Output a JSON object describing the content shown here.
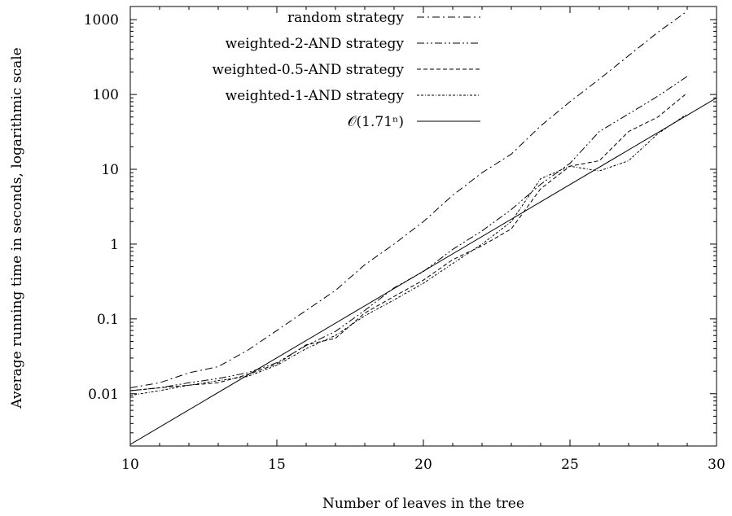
{
  "chart_data": {
    "type": "line",
    "title": "",
    "xlabel": "Number of leaves in the tree",
    "ylabel": "Average running time in seconds, logarithmic scale",
    "xlim": [
      10,
      30
    ],
    "ylim": [
      0.002,
      1500
    ],
    "yscale": "log",
    "grid": false,
    "legend_position": "top-right",
    "x_ticks": [
      10,
      15,
      20,
      25,
      30
    ],
    "x_tick_labels": [
      "10",
      "15",
      "20",
      "25",
      "30"
    ],
    "y_ticks": [
      0.01,
      0.1,
      1,
      10,
      100,
      1000
    ],
    "y_tick_labels": [
      "0.01",
      "0.1",
      "1",
      "10",
      "100",
      "1000"
    ],
    "series": [
      {
        "name": "random strategy",
        "dash": "dashdot",
        "x": [
          10,
          11,
          12,
          13,
          14,
          15,
          16,
          17,
          18,
          19,
          20,
          21,
          22,
          23,
          24,
          25,
          26,
          27,
          28,
          29
        ],
        "y": [
          0.012,
          0.014,
          0.019,
          0.023,
          0.038,
          0.07,
          0.13,
          0.24,
          0.53,
          1.0,
          2.0,
          4.5,
          9.0,
          16,
          38,
          80,
          160,
          330,
          680,
          1300
        ]
      },
      {
        "name": "weighted-2-AND strategy",
        "dash": "dashdotdot",
        "x": [
          10,
          11,
          12,
          13,
          14,
          15,
          16,
          17,
          18,
          19,
          20,
          21,
          22,
          23,
          24,
          25,
          26,
          27,
          28,
          29
        ],
        "y": [
          0.011,
          0.012,
          0.014,
          0.016,
          0.019,
          0.026,
          0.044,
          0.068,
          0.13,
          0.26,
          0.43,
          0.85,
          1.5,
          2.9,
          6.3,
          12,
          32,
          55,
          95,
          175
        ]
      },
      {
        "name": "weighted-0.5-AND strategy",
        "dash": "dashed",
        "x": [
          10,
          11,
          12,
          13,
          14,
          15,
          16,
          17,
          18,
          19,
          20,
          21,
          22,
          23,
          24,
          25,
          26,
          27,
          28,
          29
        ],
        "y": [
          0.011,
          0.012,
          0.013,
          0.014,
          0.018,
          0.025,
          0.045,
          0.055,
          0.12,
          0.2,
          0.33,
          0.62,
          0.95,
          1.6,
          5.5,
          11,
          13,
          32,
          50,
          105
        ]
      },
      {
        "name": "weighted-1-AND strategy",
        "dash": "dotted",
        "x": [
          10,
          11,
          12,
          13,
          14,
          15,
          16,
          17,
          18,
          19,
          20,
          21,
          22,
          23,
          24,
          25,
          26,
          27,
          28,
          29
        ],
        "y": [
          0.0095,
          0.011,
          0.013,
          0.015,
          0.017,
          0.024,
          0.04,
          0.06,
          0.11,
          0.18,
          0.3,
          0.55,
          1.0,
          2.0,
          7.5,
          11,
          9.5,
          13,
          30,
          55
        ]
      },
      {
        "name": "𝒪(1.71ⁿ)",
        "dash": "solid",
        "x": [
          10,
          30
        ],
        "y": [
          0.0021,
          90
        ]
      }
    ]
  }
}
